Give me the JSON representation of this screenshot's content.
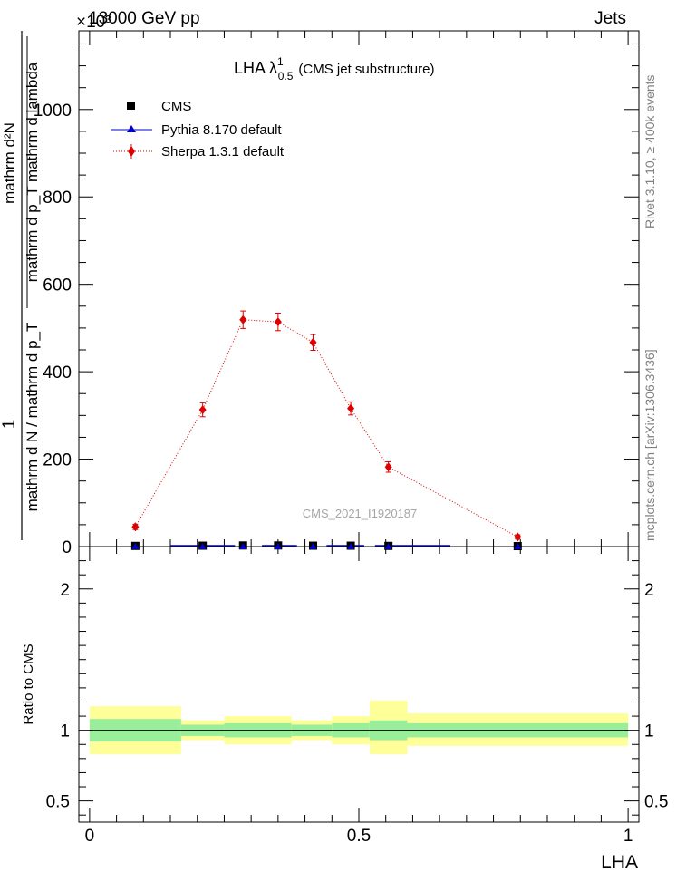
{
  "header": {
    "left": "13000 GeV pp",
    "right": "Jets",
    "multiplier": "×10³"
  },
  "side_text": {
    "rivet": "Rivet 3.1.10, ≥ 400k events",
    "mcplots": "mcplots.cern.ch [arXiv:1306.3436]"
  },
  "chart_data": [
    {
      "type": "line",
      "title": "LHA λ",
      "title_sup": "1",
      "title_sub": "0.5",
      "title_suffix": "(CMS jet substructure)",
      "analysis_label": "CMS_2021_I1920187",
      "ylabel_numerator": "1",
      "ylabel_denominator": "mathrm d N / mathrm d p_T",
      "ylabel_frac_num": "mathrm d²N",
      "ylabel_frac_den": "mathrm d p_T mathrm d lambda",
      "ylim": [
        0,
        1180
      ],
      "yticks": [
        0,
        200,
        400,
        600,
        800,
        1000
      ],
      "ytick_labels": [
        "0",
        "200",
        "400",
        "600",
        "800",
        "1000"
      ],
      "xlim": [
        -0.02,
        1.02
      ],
      "legend_position": "top-left",
      "series": [
        {
          "name": "CMS",
          "color": "#000000",
          "marker": "square",
          "x": [
            0.085,
            0.21,
            0.285,
            0.35,
            0.415,
            0.485,
            0.555,
            0.795
          ],
          "y": [
            1.5,
            2.0,
            2.5,
            2.5,
            2.0,
            2.0,
            1.5,
            1.0
          ]
        },
        {
          "name": "Pythia 8.170 default",
          "color": "#0000cc",
          "marker": "triangle",
          "x": [
            0.085,
            0.21,
            0.285,
            0.35,
            0.415,
            0.485,
            0.555,
            0.795
          ],
          "y": [
            0,
            0,
            0,
            0,
            0,
            0,
            0,
            0
          ],
          "segments": [
            [
              0.15,
              0.27
            ],
            [
              0.32,
              0.385
            ],
            [
              0.44,
              0.51
            ],
            [
              0.53,
              0.67
            ]
          ]
        },
        {
          "name": "Sherpa 1.3.1 default",
          "color": "#dd0000",
          "marker": "diamond",
          "x": [
            0.085,
            0.21,
            0.285,
            0.35,
            0.415,
            0.485,
            0.555,
            0.795
          ],
          "y": [
            45,
            313,
            519,
            514,
            467,
            316,
            182,
            22
          ],
          "yerr": [
            6,
            16,
            20,
            20,
            18,
            15,
            12,
            5
          ]
        }
      ]
    },
    {
      "type": "area",
      "ylabel": "Ratio to CMS",
      "xlabel": "LHA",
      "ylim": [
        0.35,
        2.3
      ],
      "yticks": [
        0.5,
        1,
        2
      ],
      "ytick_labels": [
        "0.5",
        "1",
        "2"
      ],
      "xticks": [
        0,
        0.5,
        1
      ],
      "xtick_labels": [
        "0",
        "0.5",
        "1"
      ],
      "xlim": [
        -0.02,
        1.02
      ],
      "bands": [
        {
          "x0": 0.0,
          "x1": 0.17,
          "inner": [
            0.92,
            1.08
          ],
          "outer": [
            0.83,
            1.17
          ]
        },
        {
          "x0": 0.17,
          "x1": 0.25,
          "inner": [
            0.96,
            1.04
          ],
          "outer": [
            0.93,
            1.07
          ]
        },
        {
          "x0": 0.25,
          "x1": 0.375,
          "inner": [
            0.95,
            1.05
          ],
          "outer": [
            0.9,
            1.1
          ]
        },
        {
          "x0": 0.375,
          "x1": 0.45,
          "inner": [
            0.96,
            1.04
          ],
          "outer": [
            0.93,
            1.07
          ]
        },
        {
          "x0": 0.45,
          "x1": 0.52,
          "inner": [
            0.95,
            1.05
          ],
          "outer": [
            0.9,
            1.1
          ]
        },
        {
          "x0": 0.52,
          "x1": 0.59,
          "inner": [
            0.93,
            1.07
          ],
          "outer": [
            0.83,
            1.21
          ]
        },
        {
          "x0": 0.59,
          "x1": 1.0,
          "inner": [
            0.95,
            1.05
          ],
          "outer": [
            0.89,
            1.12
          ]
        }
      ],
      "inner_color": "#99ee99",
      "outer_color": "#ffff99"
    }
  ]
}
